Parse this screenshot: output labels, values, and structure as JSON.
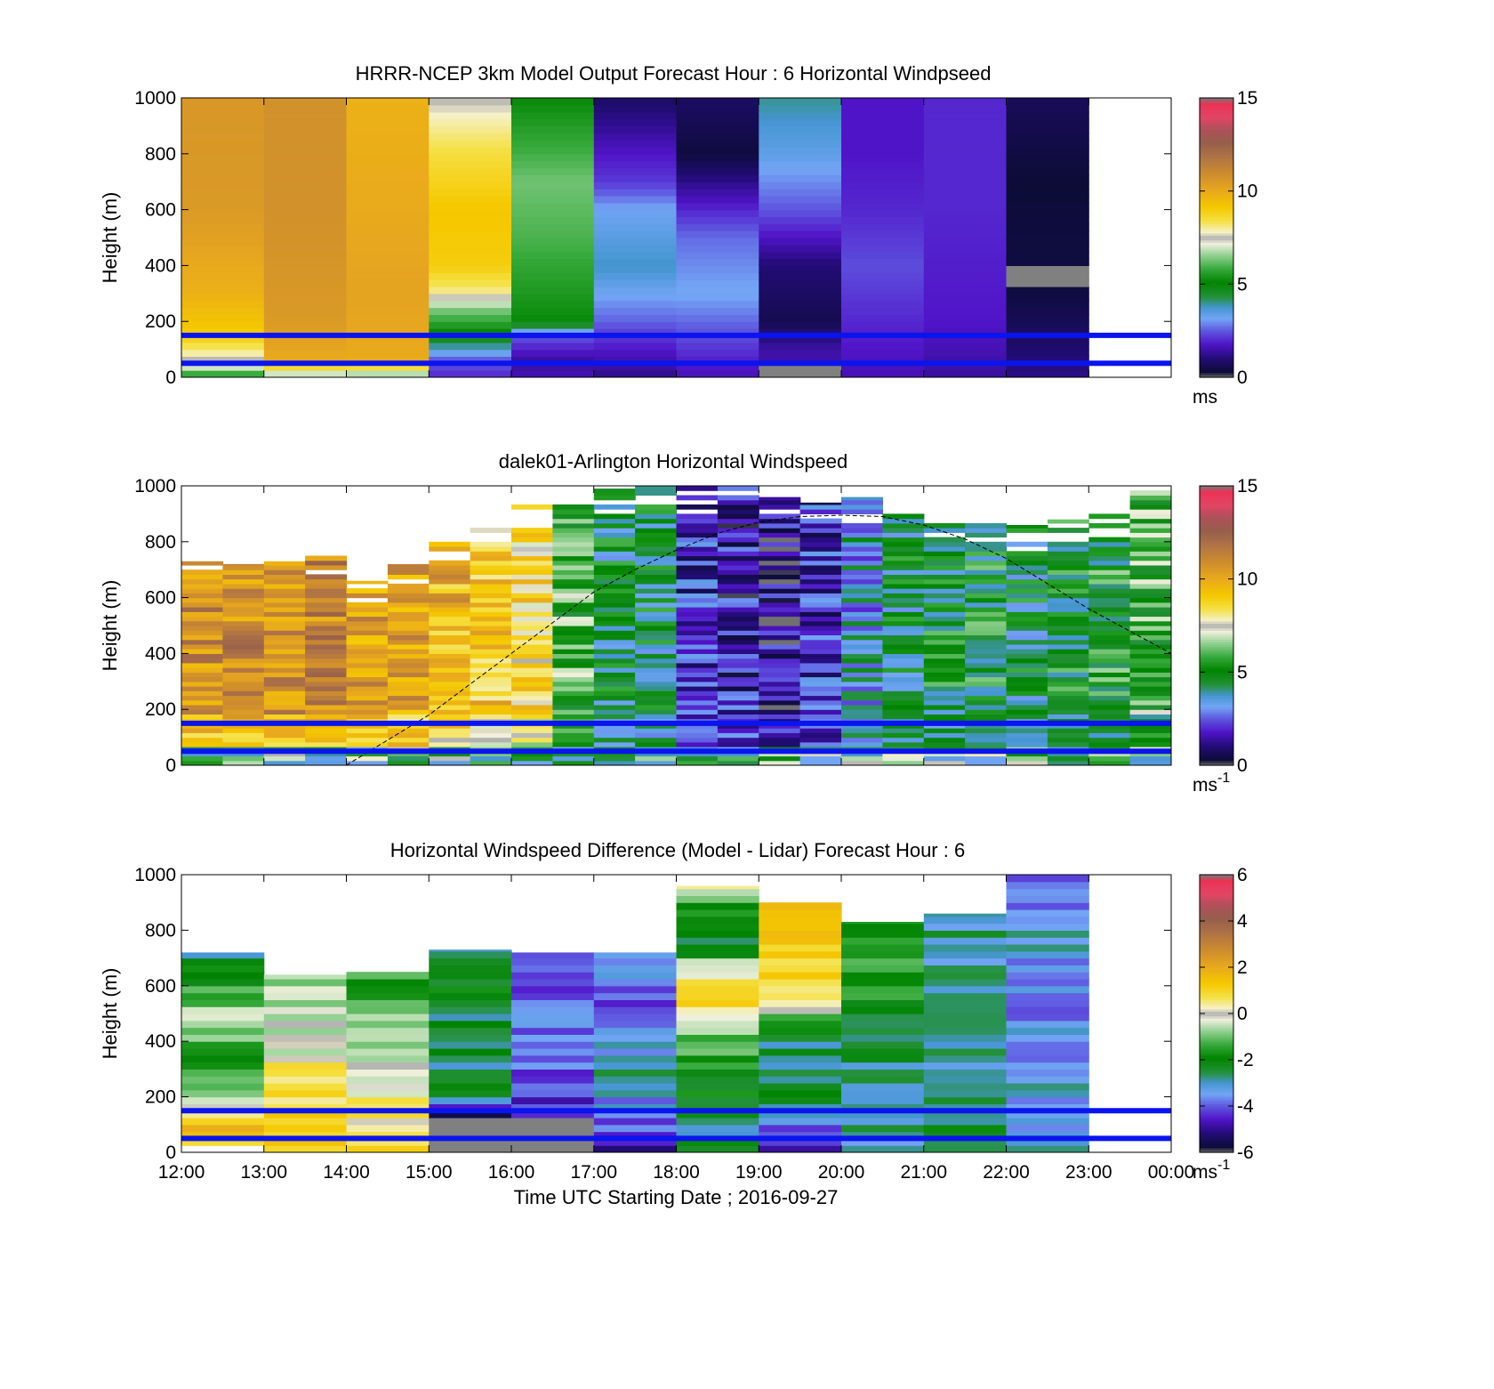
{
  "chart_data": [
    {
      "type": "heatmap",
      "title": "HRRR-NCEP 3km Model Output   Forecast Hour : 6 Horizontal Windpseed",
      "ylabel": "Height (m)",
      "xlabel": "",
      "ylim": [
        0,
        1000
      ],
      "yticks": [
        "0",
        "200",
        "400",
        "600",
        "800",
        "1000"
      ],
      "x_categories": [
        "12:00",
        "13:00",
        "14:00",
        "15:00",
        "16:00",
        "17:00",
        "18:00",
        "19:00",
        "20:00",
        "21:00",
        "22:00",
        "23:00"
      ],
      "colorbar": {
        "min": 0,
        "max": 15,
        "ticks": [
          "0",
          "5",
          "10",
          "15"
        ],
        "unit_label": "ms",
        "unit_superscript": ""
      },
      "hour_profiles": [
        [
          [
            0,
            5.2
          ],
          [
            30,
            6.8
          ],
          [
            60,
            7.5
          ],
          [
            90,
            8.0
          ],
          [
            150,
            9.0
          ],
          [
            300,
            9.8
          ],
          [
            600,
            10.5
          ],
          [
            1000,
            10.6
          ]
        ],
        [
          [
            0,
            6.2
          ],
          [
            60,
            10.0
          ],
          [
            200,
            10.5
          ],
          [
            600,
            10.8
          ],
          [
            1000,
            10.8
          ]
        ],
        [
          [
            0,
            6.0
          ],
          [
            60,
            10.0
          ],
          [
            300,
            10.2
          ],
          [
            600,
            10.0
          ],
          [
            1000,
            9.8
          ]
        ],
        [
          [
            0,
            2.0
          ],
          [
            60,
            2.5
          ],
          [
            150,
            5.0
          ],
          [
            250,
            6.5
          ],
          [
            300,
            8.0
          ],
          [
            400,
            9.0
          ],
          [
            600,
            9.2
          ],
          [
            800,
            8.5
          ],
          [
            1000,
            7.5
          ]
        ],
        [
          [
            0,
            1.6
          ],
          [
            60,
            1.4
          ],
          [
            150,
            2.5
          ],
          [
            200,
            5.2
          ],
          [
            300,
            5.5
          ],
          [
            500,
            6.0
          ],
          [
            700,
            6.3
          ],
          [
            1000,
            5.2
          ]
        ],
        [
          [
            0,
            1.2
          ],
          [
            100,
            1.8
          ],
          [
            200,
            2.6
          ],
          [
            400,
            3.8
          ],
          [
            600,
            3.2
          ],
          [
            700,
            2.2
          ],
          [
            800,
            1.8
          ],
          [
            1000,
            0.8
          ]
        ],
        [
          [
            0,
            1.6
          ],
          [
            150,
            2.4
          ],
          [
            300,
            3.2
          ],
          [
            500,
            2.7
          ],
          [
            600,
            2.0
          ],
          [
            800,
            0.4
          ],
          [
            1000,
            0.8
          ]
        ],
        [
          [
            0,
            "nan"
          ],
          [
            100,
            1.5
          ],
          [
            200,
            0.6
          ],
          [
            400,
            1.0
          ],
          [
            600,
            2.5
          ],
          [
            800,
            3.4
          ],
          [
            1000,
            4.0
          ]
        ],
        [
          [
            0,
            1.6
          ],
          [
            200,
            2.0
          ],
          [
            400,
            2.4
          ],
          [
            600,
            2.0
          ],
          [
            800,
            1.8
          ],
          [
            1000,
            1.8
          ]
        ],
        [
          [
            0,
            1.4
          ],
          [
            200,
            1.8
          ],
          [
            600,
            2.0
          ],
          [
            1000,
            2.0
          ]
        ],
        [
          [
            0,
            1.2
          ],
          [
            300,
            0.4
          ],
          [
            350,
            "nan"
          ],
          [
            450,
            0.4
          ],
          [
            700,
            0.3
          ],
          [
            1000,
            0.7
          ]
        ],
        "blank"
      ],
      "reference_lines_m": [
        50,
        150
      ]
    },
    {
      "type": "heatmap",
      "title": "dalek01-Arlington  Horizontal Windspeed",
      "ylabel": "Height (m)",
      "xlabel": "",
      "ylim": [
        0,
        1000
      ],
      "yticks": [
        "0",
        "200",
        "400",
        "600",
        "800",
        "1000"
      ],
      "x_categories": [
        "12:00",
        "13:00",
        "14:00",
        "15:00",
        "16:00",
        "17:00",
        "18:00",
        "19:00",
        "20:00",
        "21:00",
        "22:00",
        "23:00"
      ],
      "colorbar": {
        "min": 0,
        "max": 15,
        "ticks": [
          "0",
          "5",
          "10",
          "15"
        ],
        "unit_label": "ms",
        "unit_superscript": "-1"
      },
      "profile_interval_minutes": 30,
      "profile_tops_m": [
        730,
        720,
        730,
        780,
        660,
        720,
        800,
        860,
        940,
        960,
        990,
        1000,
        1000,
        1000,
        960,
        940,
        960,
        900,
        880,
        870,
        860,
        880,
        900,
        1000
      ],
      "profile_means_ms": [
        10.8,
        11.0,
        11.0,
        11.0,
        10.5,
        10.2,
        9.8,
        9.2,
        8.5,
        5.8,
        4.5,
        4.5,
        2.0,
        1.6,
        1.2,
        2.0,
        3.5,
        4.5,
        4.8,
        5.0,
        4.5,
        4.8,
        5.2,
        5.8
      ],
      "curve_hours_utc": [
        14.0,
        14.5,
        15.0,
        15.5,
        16.0,
        16.5,
        17.0,
        17.5,
        18.0,
        18.5,
        19.0,
        19.5,
        20.0,
        20.5,
        21.0,
        21.5,
        22.0,
        22.5,
        23.0,
        23.5,
        24.0
      ],
      "curve_heights_m": [
        0,
        90,
        180,
        290,
        400,
        510,
        620,
        700,
        770,
        830,
        870,
        890,
        895,
        890,
        860,
        810,
        740,
        650,
        560,
        480,
        400
      ],
      "reference_lines_m": [
        50,
        150
      ]
    },
    {
      "type": "heatmap",
      "title": "Horizontal Windspeed Difference (Model - Lidar) Forecast Hour : 6",
      "ylabel": "Height (m)",
      "xlabel": "Time UTC  Starting Date ; 2016-09-27",
      "ylim": [
        0,
        1000
      ],
      "yticks": [
        "0",
        "200",
        "400",
        "600",
        "800",
        "1000"
      ],
      "xticks": [
        "12:00",
        "13:00",
        "14:00",
        "15:00",
        "16:00",
        "17:00",
        "18:00",
        "19:00",
        "20:00",
        "21:00",
        "22:00",
        "23:00",
        "00:00"
      ],
      "colorbar": {
        "min": -6,
        "max": 6,
        "ticks": [
          "-6",
          "-4",
          "-2",
          "0",
          "2",
          "4",
          "6"
        ],
        "unit_label": "ms",
        "unit_superscript": "-1"
      },
      "hour_tops_m": [
        720,
        640,
        650,
        730,
        720,
        720,
        960,
        900,
        830,
        860,
        1000,
        0
      ],
      "hour_profiles": [
        [
          [
            30,
            0.5
          ],
          [
            90,
            1.5
          ],
          [
            200,
            -1.0
          ],
          [
            300,
            -1.5
          ],
          [
            400,
            -1.2
          ],
          [
            500,
            -0.6
          ],
          [
            600,
            -1.5
          ],
          [
            700,
            -2.5
          ]
        ],
        [
          [
            0,
            1.2
          ],
          [
            150,
            1.0
          ],
          [
            300,
            0.5
          ],
          [
            400,
            -0.5
          ],
          [
            500,
            -0.3
          ],
          [
            640,
            -0.5
          ]
        ],
        [
          [
            0,
            1.0
          ],
          [
            150,
            0.5
          ],
          [
            300,
            -0.3
          ],
          [
            400,
            -0.8
          ],
          [
            500,
            -1.0
          ],
          [
            650,
            -1.5
          ]
        ],
        [
          [
            0,
            "nan"
          ],
          [
            100,
            "nan"
          ],
          [
            150,
            -5.0
          ],
          [
            200,
            -2.5
          ],
          [
            400,
            -2.5
          ],
          [
            600,
            -2.2
          ],
          [
            730,
            -3.0
          ]
        ],
        [
          [
            0,
            "nan"
          ],
          [
            100,
            "nan"
          ],
          [
            150,
            -4.5
          ],
          [
            300,
            -4.0
          ],
          [
            400,
            -3.8
          ],
          [
            600,
            -4.0
          ],
          [
            720,
            -3.5
          ]
        ],
        [
          [
            0,
            -5.0
          ],
          [
            150,
            -3.5
          ],
          [
            300,
            -3.0
          ],
          [
            400,
            -3.4
          ],
          [
            550,
            -4.0
          ],
          [
            720,
            -3.5
          ]
        ],
        [
          [
            0,
            -2.5
          ],
          [
            100,
            -2.5
          ],
          [
            200,
            -2.2
          ],
          [
            400,
            -1.2
          ],
          [
            450,
            -0.2
          ],
          [
            550,
            1.0
          ],
          [
            650,
            0.0
          ],
          [
            750,
            -2.5
          ],
          [
            900,
            -1.5
          ],
          [
            960,
            0.5
          ]
        ],
        [
          [
            0,
            -5.0
          ],
          [
            100,
            -4.0
          ],
          [
            200,
            -2.5
          ],
          [
            400,
            -2.5
          ],
          [
            500,
            -0.5
          ],
          [
            600,
            1.0
          ],
          [
            800,
            1.5
          ],
          [
            900,
            1.8
          ]
        ],
        [
          [
            0,
            -3.0
          ],
          [
            200,
            -3.0
          ],
          [
            400,
            -2.5
          ],
          [
            600,
            -1.5
          ],
          [
            700,
            -1.0
          ],
          [
            830,
            -1.8
          ]
        ],
        [
          [
            0,
            -2.0
          ],
          [
            200,
            -2.8
          ],
          [
            500,
            -3.0
          ],
          [
            800,
            -2.8
          ],
          [
            860,
            -3.2
          ]
        ],
        [
          [
            0,
            -3.0
          ],
          [
            200,
            -3.2
          ],
          [
            400,
            -3.5
          ],
          [
            600,
            -3.5
          ],
          [
            800,
            -3.2
          ],
          [
            1000,
            -3.8
          ]
        ],
        "blank"
      ],
      "reference_lines_m": [
        50,
        150
      ]
    }
  ]
}
